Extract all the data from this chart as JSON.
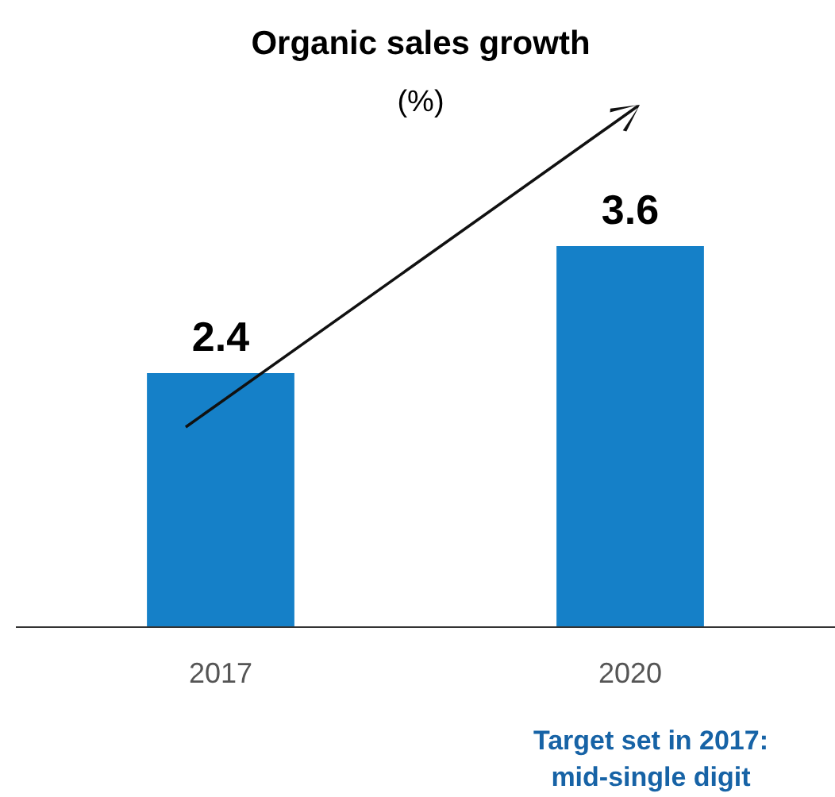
{
  "chart_data": {
    "type": "bar",
    "title": "Organic sales growth",
    "subtitle": "(%)",
    "categories": [
      "2017",
      "2020"
    ],
    "values": [
      2.4,
      3.6
    ],
    "color": "#1580c8",
    "data_labels": true,
    "annotations": [
      "Target set in 2017: mid-single digit"
    ]
  }
}
